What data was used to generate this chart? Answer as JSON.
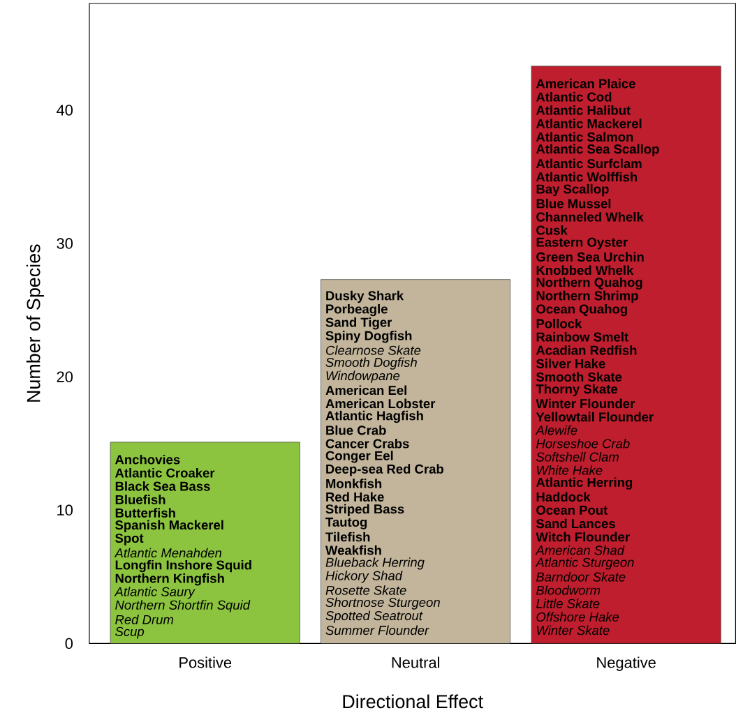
{
  "chart_data": {
    "type": "bar",
    "xlabel": "Directional Effect",
    "ylabel": "Number of Species",
    "categories": [
      "Positive",
      "Neutral",
      "Negative"
    ],
    "values": [
      15.1,
      27.3,
      43.3
    ],
    "colors": [
      "#8cc43f",
      "#c2b59b",
      "#be1e2d"
    ],
    "ylim": [
      0,
      48
    ],
    "yticks": [
      0,
      10,
      20,
      30,
      40
    ],
    "annotations": [
      "**Anchovies**",
      "**Atlantic Croaker**",
      "**Black Sea Bass**",
      "**Bluefish**",
      "**Butterfish**",
      "**Spanish Mackerel**",
      "**Spot**",
      "*Atlantic Menahden*",
      "**Longfin Inshore Squid**",
      "**Northern Kingfish**",
      "*Atlantic Saury*",
      "*Northern Shortfin Squid*",
      "*Red Drum*",
      "*Scup*",
      "**Dusky Shark**",
      "**Porbeagle**",
      "**Sand Tiger**",
      "**Spiny Dogfish**",
      "*Clearnose Skate*",
      "*Smooth Dogfish*",
      "*Windowpane*",
      "**American Eel**",
      "**American Lobster**",
      "**Atlantic Hagfish**",
      "**Blue Crab**",
      "**Cancer Crabs**",
      "**Conger Eel**",
      "**Deep-sea Red Crab**",
      "**Monkfish**",
      "**Red Hake**",
      "**Striped Bass**",
      "**Tautog**",
      "**Tilefish**",
      "**Weakfish**",
      "*Blueback Herring*",
      "*Hickory Shad*",
      "*Rosette Skate*",
      "*Shortnose Sturgeon*",
      "*Spotted Seatrout*",
      "*Summer Flounder*",
      "**American Plaice**",
      "**Atlantic Cod**",
      "**Atlantic Halibut**",
      "**Atlantic Mackerel**",
      "**Atlantic Salmon**",
      "**Atlantic Sea Scallop**",
      "**Atlantic Surfclam**",
      "**Atlantic Wolffish**",
      "**Bay Scallop**",
      "**Blue Mussel**",
      "**Channeled Whelk**",
      "**Cusk**",
      "**Eastern Oyster**",
      "**Green Sea Urchin**",
      "**Knobbed Whelk**",
      "**Northern Quahog**",
      "**Northern Shrimp**",
      "**Ocean Quahog**",
      "**Pollock**",
      "**Rainbow Smelt**",
      "**Acadian Redfish**",
      "**Silver Hake**",
      "**Smooth Skate**",
      "**Thorny Skate**",
      "**Winter Flounder**",
      "**Yellowtail Flounder**",
      "*Alewife*",
      "*Horseshoe Crab*",
      "*Softshell Clam*",
      "*White Hake*",
      "**Atlantic Herring**",
      "**Haddock**",
      "**Ocean Pout**",
      "**Sand Lances**",
      "**Witch Flounder**",
      "*American Shad*",
      "*Atlantic Sturgeon*",
      "*Barndoor Skate*",
      "*Bloodworm*",
      "*Little Skate*",
      "*Offshore Hake*",
      "*Winter Skate*"
    ]
  }
}
